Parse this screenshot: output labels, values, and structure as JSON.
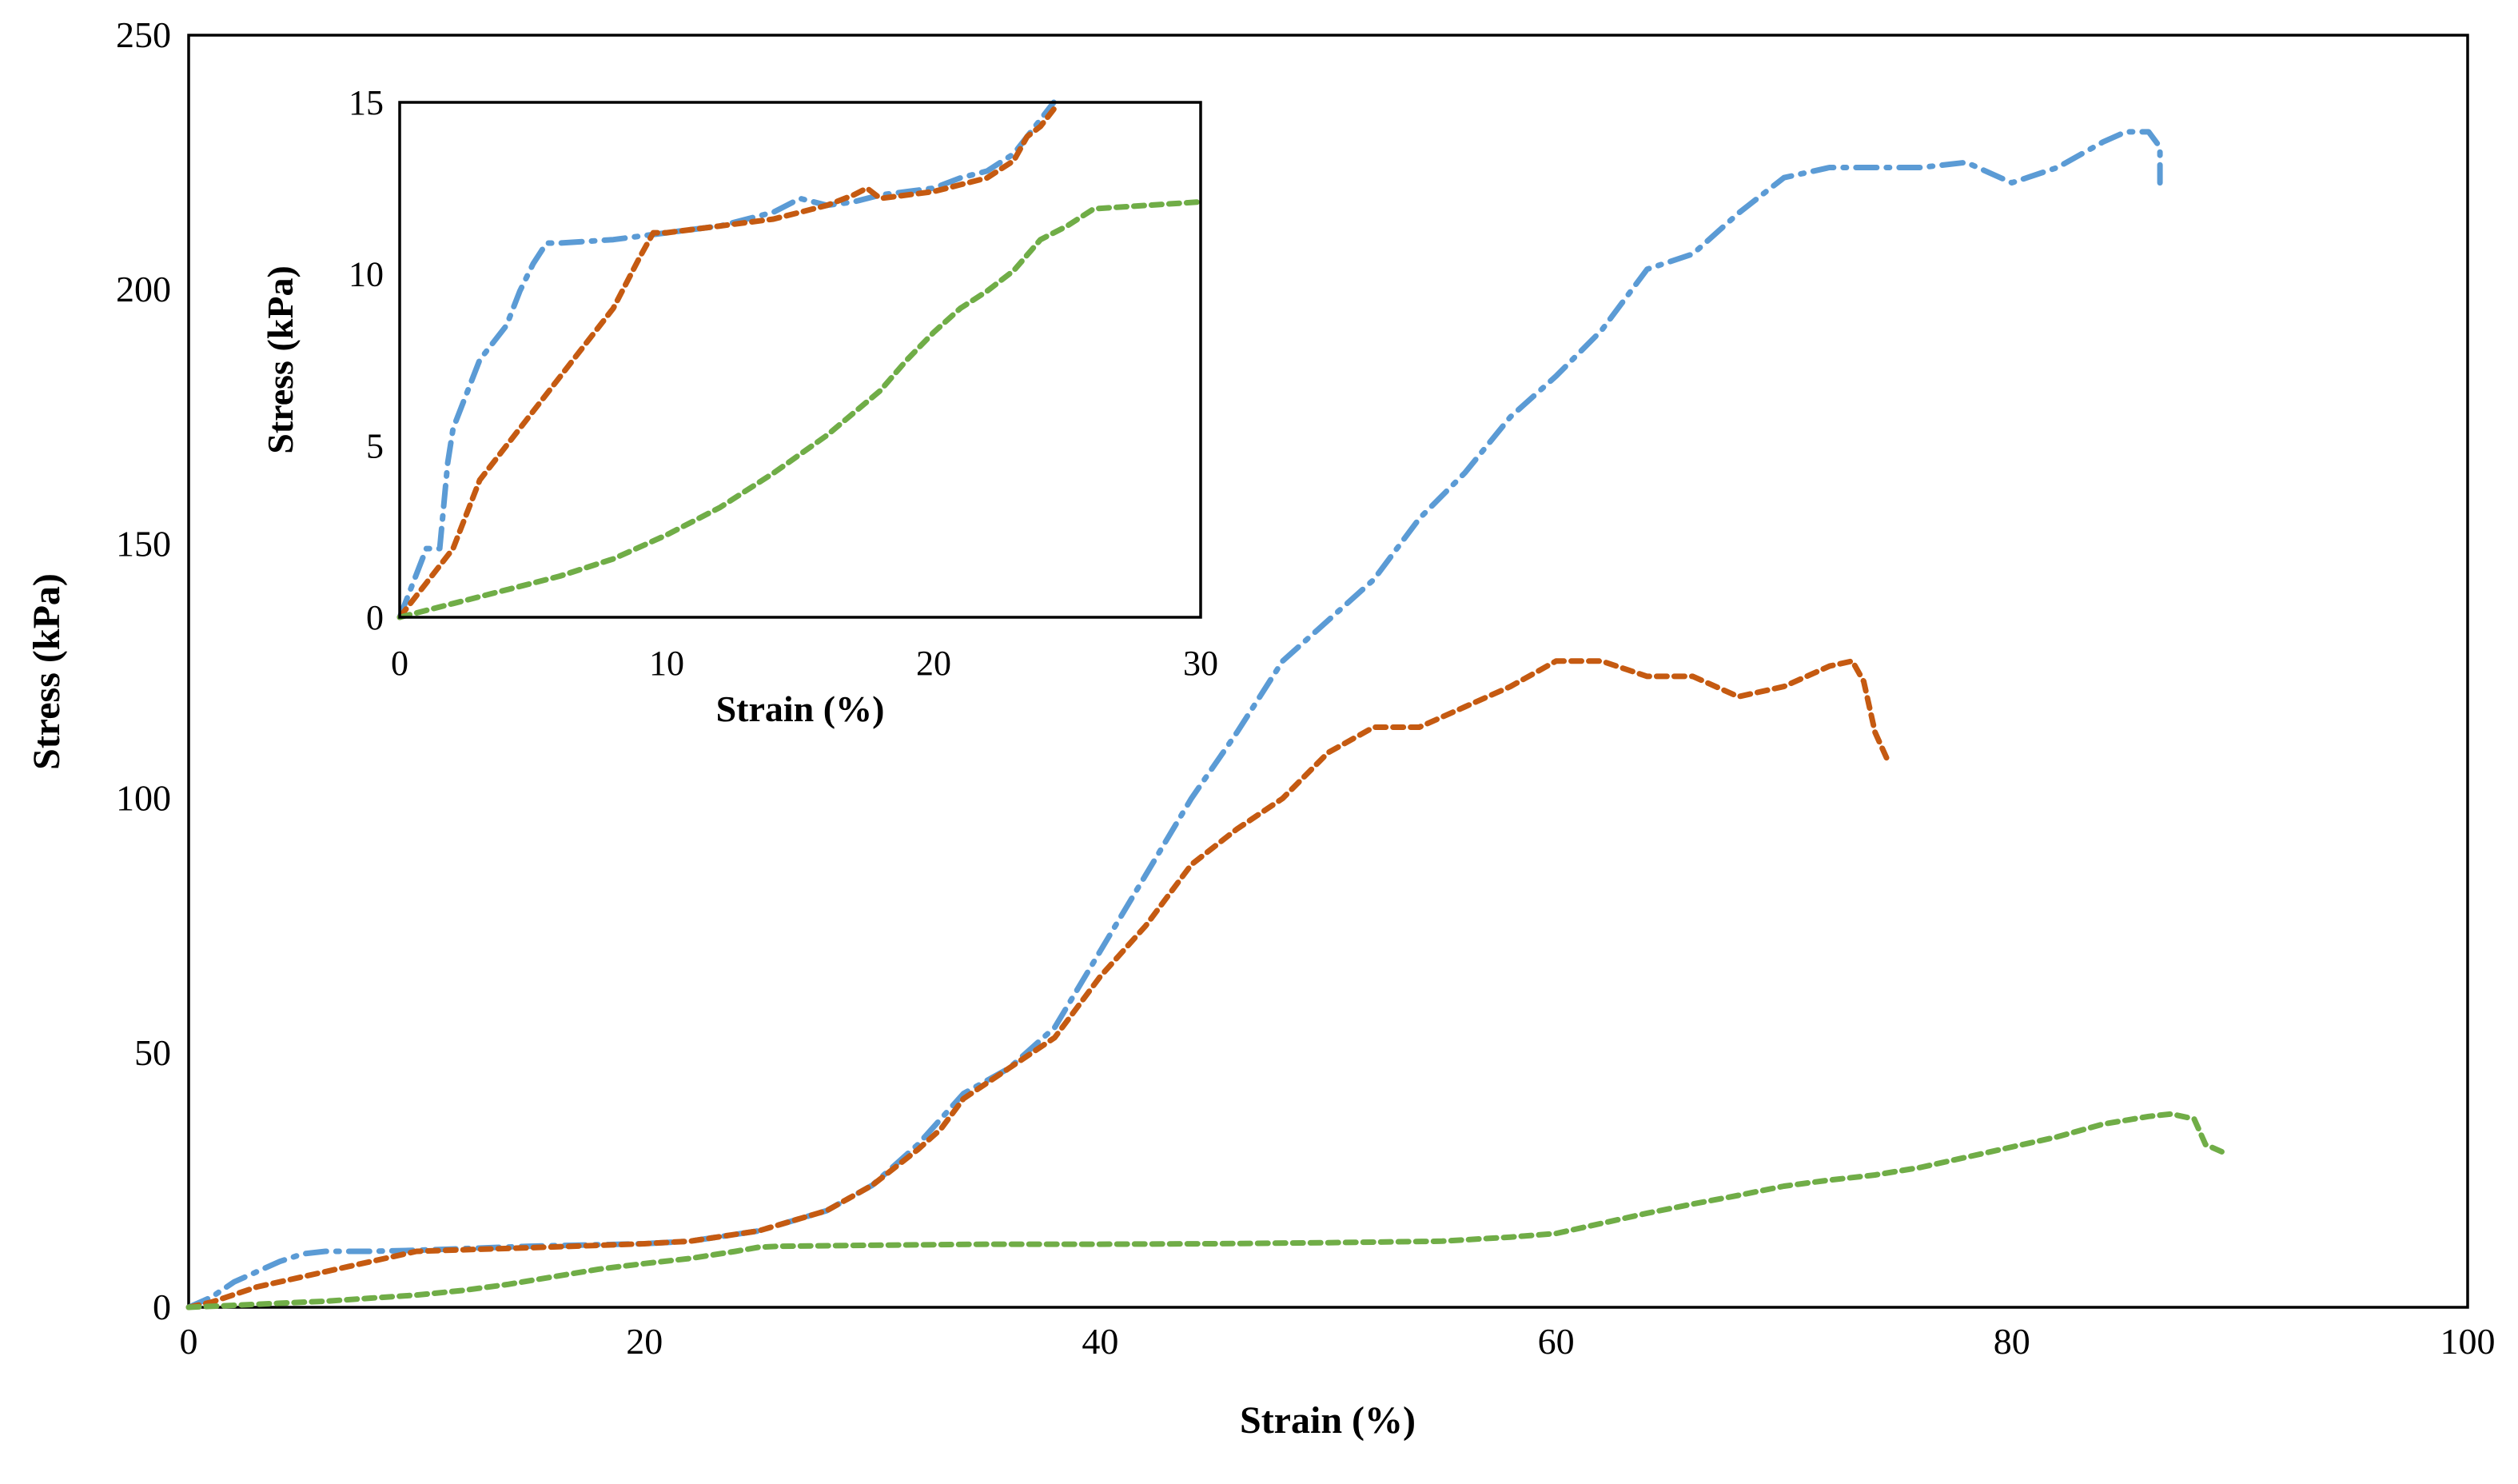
{
  "chart_data": [
    {
      "type": "line",
      "title": "",
      "xlabel": "Strain (%)",
      "ylabel": "Stress (kPa)",
      "xlim": [
        0,
        100
      ],
      "ylim": [
        0,
        250
      ],
      "xticks": [
        "0",
        "20",
        "40",
        "60",
        "80",
        "100"
      ],
      "yticks": [
        "0",
        "50",
        "100",
        "150",
        "200",
        "250"
      ],
      "grid": false,
      "legend": "none",
      "series": [
        {
          "name": "blue dash-dot",
          "color": "#5B9BD5",
          "dash": "dash-dot",
          "x": [
            0,
            1,
            2,
            4,
            5,
            6,
            8,
            10,
            15,
            20,
            22,
            25,
            28,
            30,
            32,
            34,
            36,
            38,
            40,
            42,
            44,
            46,
            48,
            50,
            52,
            54,
            56,
            58,
            60,
            62,
            64,
            66,
            68,
            70,
            72,
            74,
            76,
            78,
            80,
            82,
            84,
            85,
            86,
            86.5,
            86.5
          ],
          "y": [
            0,
            2,
            5,
            9,
            10.5,
            11,
            11,
            11.2,
            12,
            12.5,
            13,
            15,
            19,
            24,
            32,
            42,
            47,
            55,
            70,
            85,
            100,
            113,
            127,
            135,
            143,
            155,
            164,
            175,
            183,
            192,
            204,
            207,
            215,
            222,
            224,
            224,
            224,
            225,
            221,
            224,
            229,
            231,
            231,
            228,
            221
          ]
        },
        {
          "name": "orange dashed",
          "color": "#C55A11",
          "dash": "dashed",
          "x": [
            0,
            1,
            3,
            5,
            7,
            9,
            10,
            12,
            15,
            20,
            22,
            25,
            28,
            30,
            32,
            33,
            34,
            36,
            38,
            40,
            42,
            44,
            46,
            48,
            50,
            52,
            54,
            56,
            58,
            60,
            62,
            64,
            66,
            68,
            70,
            72,
            73,
            73.5,
            74,
            74.5
          ],
          "y": [
            0,
            1,
            4,
            6,
            8,
            10,
            11,
            11.3,
            11.7,
            12.5,
            13,
            15,
            19,
            24,
            31,
            35,
            41,
            47,
            53,
            65,
            75,
            87,
            94,
            100,
            109,
            114,
            114,
            118,
            122,
            127,
            127,
            124,
            124,
            120,
            122,
            126,
            127,
            123,
            113,
            108
          ]
        },
        {
          "name": "green dashed",
          "color": "#70AD47",
          "dash": "dashed",
          "x": [
            0,
            2,
            4,
            6,
            8,
            10,
            12,
            14,
            16,
            18,
            20,
            22,
            24,
            25,
            26,
            30,
            35,
            40,
            45,
            50,
            55,
            58,
            60,
            62,
            64,
            66,
            68,
            70,
            72,
            74,
            76,
            78,
            80,
            82,
            84,
            86,
            87,
            88,
            88.5,
            89.5
          ],
          "y": [
            0,
            0.4,
            0.8,
            1.2,
            1.8,
            2.4,
            3.3,
            4.5,
            6,
            7.5,
            8.6,
            9.6,
            11,
            11.8,
            12,
            12.2,
            12.4,
            12.4,
            12.5,
            12.7,
            13,
            13.8,
            14.5,
            16.5,
            18.5,
            20.3,
            22,
            23.8,
            25,
            26,
            27.5,
            29.5,
            31.5,
            33.5,
            36,
            37.5,
            38,
            37,
            32,
            30
          ]
        }
      ]
    },
    {
      "type": "line",
      "title": "",
      "xlabel": "Strain (%)",
      "ylabel": "Stress (kPa)",
      "xlim": [
        0,
        30
      ],
      "ylim": [
        0,
        15
      ],
      "xticks": [
        "0",
        "10",
        "20",
        "30"
      ],
      "yticks": [
        "0",
        "5",
        "10",
        "15"
      ],
      "grid": false,
      "legend": "none",
      "placement": "inset top-left",
      "series": [
        {
          "name": "blue dash-dot",
          "color": "#5B9BD5",
          "dash": "dash-dot",
          "x": [
            0,
            0.5,
            1,
            1.5,
            1.8,
            2,
            2.5,
            3,
            3.5,
            4,
            4.5,
            5,
            5.5,
            6,
            8,
            10,
            12,
            14,
            15,
            16,
            17,
            18,
            20,
            21,
            22,
            23,
            23.5,
            24,
            24.5
          ],
          "y": [
            0,
            1,
            2,
            2,
            4.5,
            5.5,
            6.5,
            7.5,
            8,
            8.5,
            9.5,
            10.3,
            10.9,
            10.9,
            11,
            11.2,
            11.4,
            11.8,
            12.2,
            12,
            12.1,
            12.3,
            12.5,
            12.8,
            13,
            13.5,
            14,
            14.5,
            15
          ]
        },
        {
          "name": "orange dashed",
          "color": "#C55A11",
          "dash": "dashed",
          "x": [
            0,
            0.5,
            1,
            2,
            2.5,
            3,
            4,
            5,
            6,
            7,
            8,
            9,
            9.5,
            10,
            12,
            14,
            16,
            17,
            17.5,
            18,
            20,
            21,
            22,
            23,
            23.5,
            24,
            24.5
          ],
          "y": [
            0,
            0.5,
            1,
            2,
            3,
            4,
            5,
            6,
            7,
            8,
            9,
            10.5,
            11.2,
            11.2,
            11.4,
            11.6,
            12,
            12.3,
            12.5,
            12.2,
            12.4,
            12.6,
            12.8,
            13.3,
            14,
            14.3,
            14.8
          ]
        },
        {
          "name": "green dashed",
          "color": "#70AD47",
          "dash": "dashed",
          "x": [
            0,
            1,
            2,
            4,
            6,
            8,
            10,
            12,
            14,
            16,
            18,
            19,
            20,
            21,
            22,
            23,
            24,
            25,
            26,
            28,
            30
          ],
          "y": [
            0,
            0.2,
            0.4,
            0.8,
            1.2,
            1.7,
            2.4,
            3.2,
            4.2,
            5.3,
            6.6,
            7.5,
            8.3,
            9.0,
            9.5,
            10.1,
            11.0,
            11.4,
            11.9,
            12.0,
            12.1
          ]
        }
      ]
    }
  ]
}
